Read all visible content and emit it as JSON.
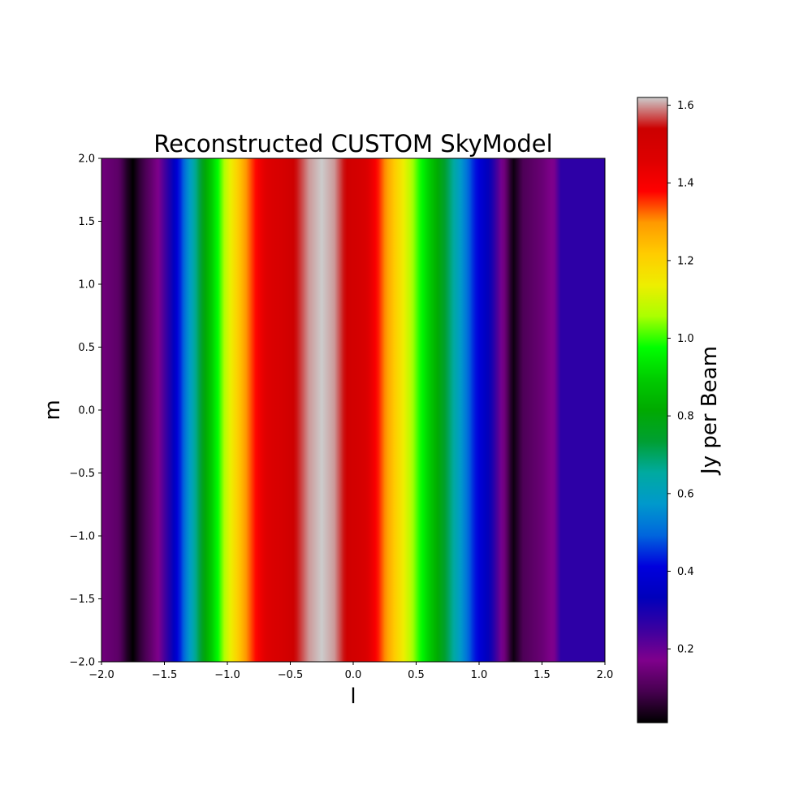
{
  "chart_data": {
    "type": "heatmap",
    "title": "Reconstructed CUSTOM SkyModel",
    "xlabel": "l",
    "ylabel": "m",
    "colorbar_label": "Jy per Beam",
    "colormap": "nipy_spectral",
    "xlim": [
      -2.0,
      2.0
    ],
    "ylim": [
      -2.0,
      2.0
    ],
    "clim": [
      0.01,
      1.62
    ],
    "x_ticks": [
      -2.0,
      -1.5,
      -1.0,
      -0.5,
      0.0,
      0.5,
      1.0,
      1.5,
      2.0
    ],
    "x_tick_labels": [
      "−2.0",
      "−1.5",
      "−1.0",
      "−0.5",
      "0.0",
      "0.5",
      "1.0",
      "1.5",
      "2.0"
    ],
    "y_ticks": [
      2.0,
      1.5,
      1.0,
      0.5,
      0.0,
      -0.5,
      -1.0,
      -1.5,
      -2.0
    ],
    "y_tick_labels": [
      "2.0",
      "1.5",
      "1.0",
      "0.5",
      "0.0",
      "−0.5",
      "−1.0",
      "−1.5",
      "−2.0"
    ],
    "colorbar_ticks": [
      0.2,
      0.4,
      0.6,
      0.8,
      1.0,
      1.2,
      1.4,
      1.6
    ],
    "colorbar_tick_labels": [
      "0.2",
      "0.4",
      "0.6",
      "0.8",
      "1.0",
      "1.2",
      "1.4",
      "1.6"
    ],
    "profile_along_l": {
      "l": [
        -2.0,
        -1.86,
        -1.8,
        -1.75,
        -1.7,
        -1.55,
        -1.45,
        -1.3,
        -1.15,
        -1.0,
        -0.85,
        -0.7,
        -0.5,
        -0.35,
        -0.25,
        -0.15,
        -0.05,
        0.1,
        0.3,
        0.45,
        0.6,
        0.8,
        0.95,
        1.1,
        1.2,
        1.27,
        1.35,
        1.5,
        1.6,
        1.65,
        2.0
      ],
      "value": [
        0.15,
        0.12,
        0.05,
        0.01,
        0.06,
        0.17,
        0.3,
        0.58,
        0.85,
        1.1,
        1.3,
        1.45,
        1.52,
        1.6,
        1.62,
        1.6,
        1.53,
        1.48,
        1.25,
        1.08,
        0.9,
        0.65,
        0.45,
        0.3,
        0.15,
        0.02,
        0.1,
        0.14,
        0.18,
        0.27,
        0.27
      ]
    },
    "colormap_stops": [
      [
        0.0,
        "#000000"
      ],
      [
        0.05,
        "#470050"
      ],
      [
        0.1,
        "#7f008c"
      ],
      [
        0.15,
        "#3a00a0"
      ],
      [
        0.2,
        "#0000bb"
      ],
      [
        0.25,
        "#0000dd"
      ],
      [
        0.3,
        "#0066dd"
      ],
      [
        0.35,
        "#0099cc"
      ],
      [
        0.4,
        "#00aaa0"
      ],
      [
        0.45,
        "#009f32"
      ],
      [
        0.5,
        "#00aa00"
      ],
      [
        0.55,
        "#00cc00"
      ],
      [
        0.6,
        "#00ff00"
      ],
      [
        0.65,
        "#aaff00"
      ],
      [
        0.7,
        "#eeee00"
      ],
      [
        0.75,
        "#ffcc00"
      ],
      [
        0.8,
        "#ff9900"
      ],
      [
        0.85,
        "#ff0000"
      ],
      [
        0.9,
        "#dd0000"
      ],
      [
        0.95,
        "#cc0000"
      ],
      [
        1.0,
        "#cccccc"
      ]
    ]
  }
}
